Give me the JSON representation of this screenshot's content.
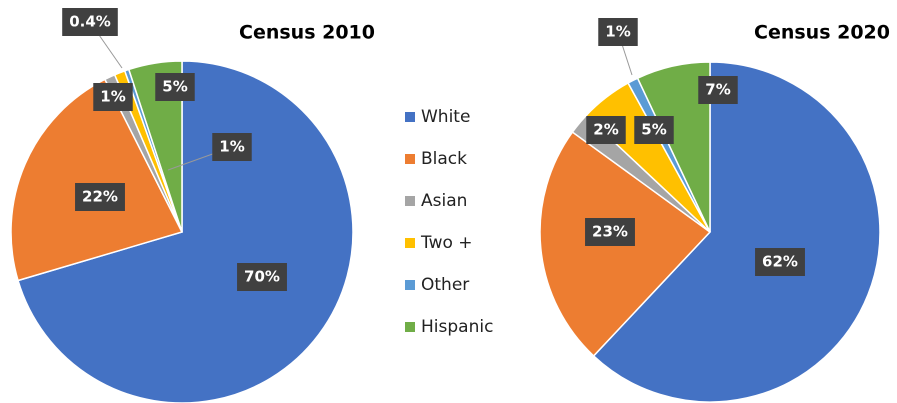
{
  "chart_data": [
    {
      "type": "pie",
      "title": "Census 2010",
      "categories": [
        "White",
        "Black",
        "Asian",
        "Two +",
        "Other",
        "Hispanic"
      ],
      "colors": [
        "#4472c4",
        "#ed7d31",
        "#a5a5a5",
        "#ffc000",
        "#5b9bd5",
        "#70ad47"
      ],
      "values": [
        70,
        22,
        1,
        1,
        0.4,
        5
      ],
      "value_labels": [
        "70%",
        "22%",
        "1%",
        "1%",
        "0.4%",
        "5%"
      ]
    },
    {
      "type": "pie",
      "title": "Census 2020",
      "values": [
        62,
        23,
        2,
        5,
        1,
        7
      ],
      "value_labels": [
        "62%",
        "23%",
        "2%",
        "5%",
        "1%",
        "7%"
      ]
    }
  ]
}
